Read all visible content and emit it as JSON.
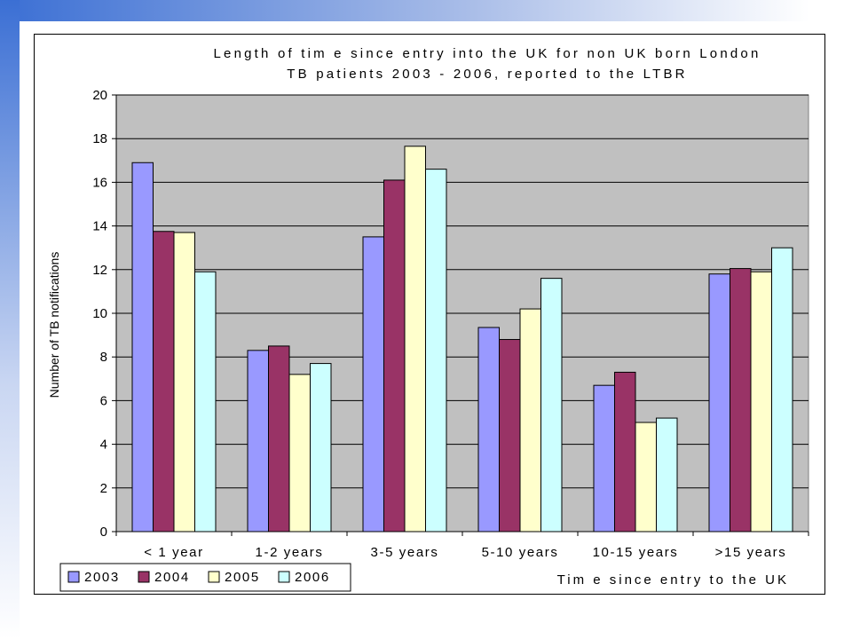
{
  "colors": {
    "slide_gradient_start": "#3b6fd4",
    "plot_area": "#c0c0c0",
    "series": [
      "#9999ff",
      "#993366",
      "#ffffcc",
      "#ccffff"
    ]
  },
  "chart_data": {
    "type": "bar",
    "title_lines": [
      "Length of tim e since entry into the UK for non UK born London",
      "TB patients 2003 - 2006, reported to the LTBR"
    ],
    "xlabel": "Tim e since entry to the UK",
    "ylabel": "Number of TB notifications",
    "ylim": [
      0,
      20
    ],
    "yticks": [
      "0",
      "2",
      "4",
      "6",
      "8",
      "10",
      "12",
      "14",
      "16",
      "18",
      "20"
    ],
    "grid": true,
    "legend_position": "bottom-left",
    "categories": [
      "< 1 year",
      "1-2 years",
      "3-5 years",
      "5-10 years",
      "10-15 years",
      ">15 years"
    ],
    "series": [
      {
        "name": "2003",
        "values": [
          16.9,
          8.3,
          13.5,
          9.35,
          6.7,
          11.8
        ]
      },
      {
        "name": "2004",
        "values": [
          13.75,
          8.5,
          16.1,
          8.8,
          7.3,
          12.05
        ]
      },
      {
        "name": "2005",
        "values": [
          13.7,
          7.2,
          17.65,
          10.2,
          5.0,
          11.9
        ]
      },
      {
        "name": "2006",
        "values": [
          11.9,
          7.7,
          16.6,
          11.6,
          5.2,
          13.0
        ]
      }
    ]
  }
}
